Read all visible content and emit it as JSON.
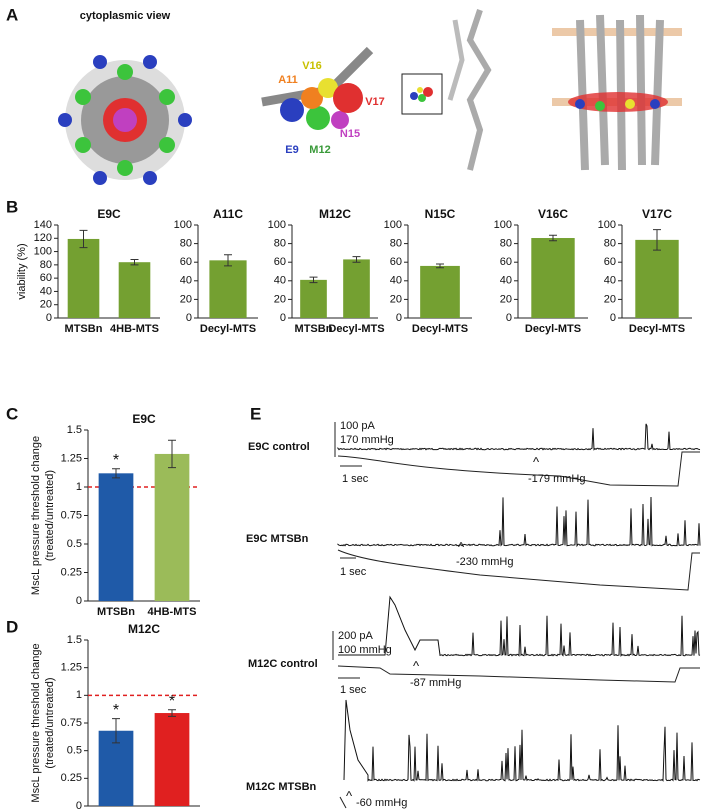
{
  "panel_labels": [
    "A",
    "B",
    "C",
    "D",
    "E"
  ],
  "structure": {
    "view_label": "cytoplasmic view",
    "residues": [
      "V16",
      "A11",
      "V17",
      "N15",
      "E9",
      "M12"
    ]
  },
  "chart_data": [
    {
      "type": "bar",
      "title": "E9C",
      "ylabel": "viability (%)",
      "categories": [
        "MTSBn",
        "4HB-MTS"
      ],
      "values": [
        119,
        84
      ],
      "errors": [
        13,
        4
      ],
      "color": "#74a031",
      "ylim": [
        0,
        140
      ],
      "yticks": [
        0,
        20,
        40,
        60,
        80,
        100,
        120,
        140
      ]
    },
    {
      "type": "bar",
      "title": "A11C",
      "categories": [
        "Decyl-MTS"
      ],
      "values": [
        62
      ],
      "errors": [
        6
      ],
      "color": "#74a031",
      "ylim": [
        0,
        100
      ],
      "yticks": [
        0,
        20,
        40,
        60,
        80,
        100
      ]
    },
    {
      "type": "bar",
      "title": "M12C",
      "categories": [
        "MTSBn",
        "Decyl-MTS"
      ],
      "values": [
        41,
        63
      ],
      "errors": [
        3,
        3
      ],
      "color": "#74a031",
      "ylim": [
        0,
        100
      ],
      "yticks": [
        0,
        20,
        40,
        60,
        80,
        100
      ]
    },
    {
      "type": "bar",
      "title": "N15C",
      "categories": [
        "Decyl-MTS"
      ],
      "values": [
        56
      ],
      "errors": [
        2
      ],
      "color": "#74a031",
      "ylim": [
        0,
        100
      ],
      "yticks": [
        0,
        20,
        40,
        60,
        80,
        100
      ]
    },
    {
      "type": "bar",
      "title": "V16C",
      "categories": [
        "Decyl-MTS"
      ],
      "values": [
        86
      ],
      "errors": [
        3
      ],
      "color": "#74a031",
      "ylim": [
        0,
        100
      ],
      "yticks": [
        0,
        20,
        40,
        60,
        80,
        100
      ]
    },
    {
      "type": "bar",
      "title": "V17C",
      "categories": [
        "Decyl-MTS"
      ],
      "values": [
        84
      ],
      "errors": [
        11
      ],
      "color": "#74a031",
      "ylim": [
        0,
        100
      ],
      "yticks": [
        0,
        20,
        40,
        60,
        80,
        100
      ]
    },
    {
      "type": "bar",
      "title": "E9C",
      "ylabel": [
        "MscL pressure threshold change",
        "(treated/untreated)"
      ],
      "categories": [
        "MTSBn",
        "4HB-MTS"
      ],
      "values": [
        1.12,
        1.29
      ],
      "errors": [
        0.04,
        0.12
      ],
      "colors": [
        "#1f5aa8",
        "#9bbb59"
      ],
      "significance": [
        "*",
        null
      ],
      "reference_line": 1,
      "reference_color": "#e02020",
      "ylim": [
        0,
        1.5
      ],
      "yticks": [
        0,
        0.25,
        0.5,
        0.75,
        1,
        1.25,
        1.5
      ]
    },
    {
      "type": "bar",
      "title": "M12C",
      "ylabel": [
        "MscL pressure threshold change",
        "(treated/untreated)"
      ],
      "categories": [
        null,
        null
      ],
      "values": [
        0.68,
        0.84
      ],
      "errors": [
        0.11,
        0.03
      ],
      "colors": [
        "#1f5aa8",
        "#e02020"
      ],
      "significance": [
        "*",
        "*"
      ],
      "reference_line": 1,
      "reference_color": "#e02020",
      "ylim": [
        0,
        1.5
      ],
      "yticks": [
        0,
        0.25,
        0.5,
        0.75,
        1,
        1.25,
        1.5
      ]
    }
  ],
  "traces": [
    {
      "label": "E9C control",
      "scale_current": "100 pA",
      "scale_pressure": "170 mmHg",
      "time_scale": "1 sec",
      "marker": "^",
      "threshold": "-179 mmHg"
    },
    {
      "label": "E9C MTSBn",
      "time_scale": "1 sec",
      "marker": "^",
      "threshold": "-230 mmHg"
    },
    {
      "label": "M12C control",
      "scale_current": "200 pA",
      "scale_pressure": "100 mmHg",
      "time_scale": "1 sec",
      "marker": "^",
      "threshold": "-87 mmHg"
    },
    {
      "label": "M12C MTSBn",
      "marker": "^",
      "threshold": "-60 mmHg"
    }
  ]
}
